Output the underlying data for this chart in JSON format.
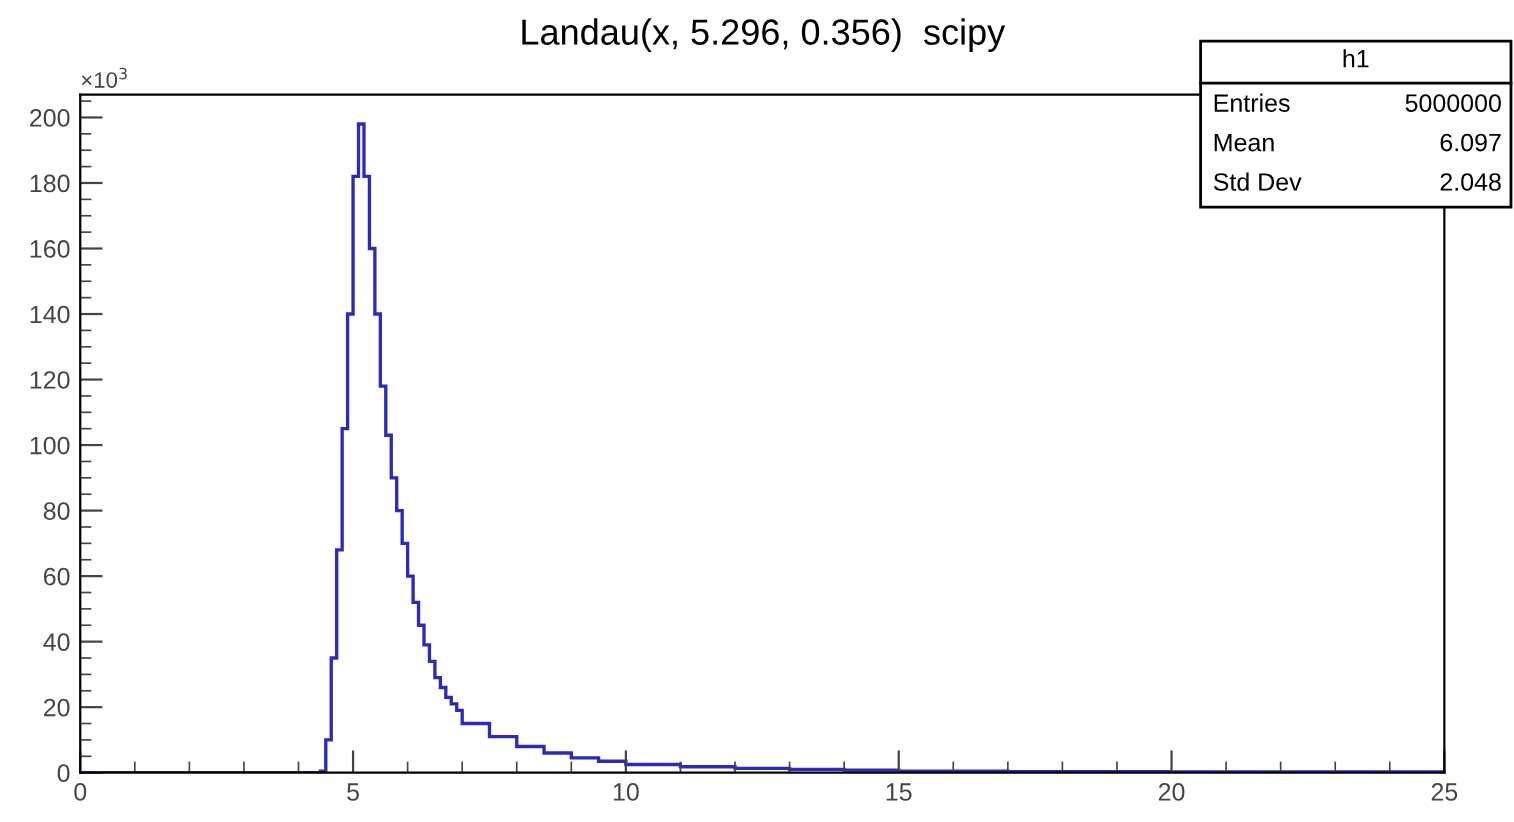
{
  "chart_data": {
    "type": "histogram",
    "title": "Landau(x, 5.296, 0.356)  scipy",
    "bins": [
      0,
      4.4,
      4.5,
      4.6,
      4.7,
      4.8,
      4.9,
      5.0,
      5.1,
      5.2,
      5.3,
      5.4,
      5.5,
      5.6,
      5.7,
      5.8,
      5.9,
      6.0,
      6.1,
      6.2,
      6.3,
      6.4,
      6.5,
      6.6,
      6.7,
      6.8,
      6.9,
      7.0,
      7.5,
      8.0,
      8.5,
      9.0,
      9.5,
      10,
      11,
      12,
      13,
      14,
      15,
      17,
      20,
      25
    ],
    "values": [
      0,
      0.5,
      10,
      35,
      68,
      105,
      140,
      182,
      198,
      182,
      160,
      140,
      118,
      103,
      90,
      80,
      70,
      60,
      52,
      45,
      39,
      34,
      29,
      26,
      23,
      21,
      19,
      15,
      11,
      8,
      6,
      4.5,
      3.5,
      2.5,
      1.8,
      1.3,
      1,
      0.8,
      0.5,
      0.3,
      0.2
    ],
    "color": "#2b2bb8",
    "xlim": [
      0,
      25
    ],
    "xticks": [
      0,
      5,
      10,
      15,
      20,
      25
    ],
    "ylim": [
      0,
      207
    ],
    "yticks": [
      0,
      20,
      40,
      60,
      80,
      100,
      120,
      140,
      160,
      180,
      200
    ],
    "annotations": [
      "×10$^{3}$",
      "h1",
      "Entries",
      "5000000",
      "Mean",
      "6.097",
      "Std Dev",
      "2.048"
    ]
  }
}
